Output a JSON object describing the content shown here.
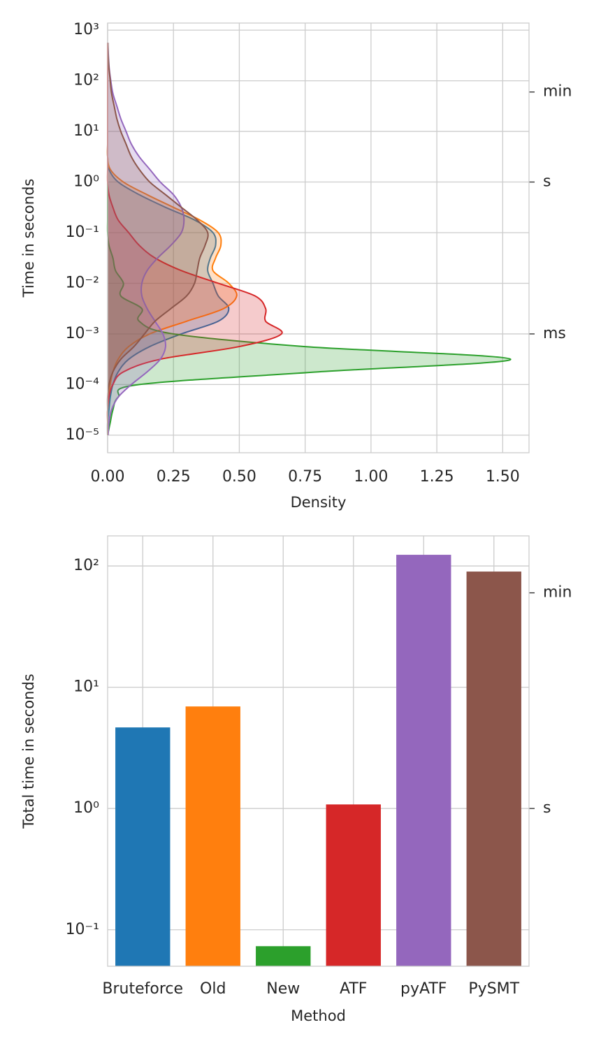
{
  "chart_data": [
    {
      "type": "kde",
      "xlabel": "Density",
      "ylabel": "Time in seconds",
      "yscale": "log",
      "grid": true,
      "xlim": [
        0,
        1.6
      ],
      "xticks": [
        {
          "value": 0,
          "label": "0.00"
        },
        {
          "value": 0.25,
          "label": "0.25"
        },
        {
          "value": 0.5,
          "label": "0.50"
        },
        {
          "value": 0.75,
          "label": "0.75"
        },
        {
          "value": 1,
          "label": "1.00"
        },
        {
          "value": 1.25,
          "label": "1.25"
        },
        {
          "value": 1.5,
          "label": "1.50"
        }
      ],
      "ylim": [
        4.5e-06,
        1380
      ],
      "yticks": [
        {
          "value": 1e-05,
          "label": "10⁻⁵"
        },
        {
          "value": 0.0001,
          "label": "10⁻⁴"
        },
        {
          "value": 0.001,
          "label": "10⁻³"
        },
        {
          "value": 0.01,
          "label": "10⁻²"
        },
        {
          "value": 0.1,
          "label": "10⁻¹"
        },
        {
          "value": 1,
          "label": "10⁰"
        },
        {
          "value": 10,
          "label": "10¹"
        },
        {
          "value": 100,
          "label": "10²"
        },
        {
          "value": 1000,
          "label": "10³"
        }
      ],
      "y2lim": [
        4.5e-06,
        1380
      ],
      "y2ticks": [
        {
          "value": 60,
          "label": "min"
        },
        {
          "value": 1,
          "label": "s"
        },
        {
          "value": 0.001,
          "label": "ms"
        }
      ],
      "y": [
        1e-05,
        1.78e-05,
        3.16e-05,
        5.62e-05,
        0.0001,
        0.000178,
        0.000316,
        0.000562,
        0.001,
        0.00178,
        0.00316,
        0.00562,
        0.01,
        0.0178,
        0.0316,
        0.0562,
        0.1,
        0.178,
        0.316,
        0.562,
        1,
        1.78,
        3.16,
        5.62,
        10,
        17.8,
        31.6,
        56.2,
        100,
        178,
        316,
        562
      ],
      "series": [
        {
          "color": "#1f77b4",
          "values": [
            0,
            0,
            0.005,
            0.01,
            0.02,
            0.04,
            0.08,
            0.16,
            0.28,
            0.42,
            0.46,
            0.42,
            0.4,
            0.38,
            0.39,
            0.41,
            0.4,
            0.33,
            0.22,
            0.12,
            0.04,
            0.005,
            0,
            0,
            0,
            0,
            0,
            0,
            0,
            0,
            0,
            0
          ]
        },
        {
          "color": "#ff7f0e",
          "values": [
            0,
            0,
            0,
            0.005,
            0.01,
            0.02,
            0.04,
            0.08,
            0.16,
            0.3,
            0.44,
            0.49,
            0.46,
            0.4,
            0.41,
            0.43,
            0.42,
            0.35,
            0.25,
            0.15,
            0.06,
            0.01,
            0,
            0,
            0,
            0,
            0,
            0,
            0,
            0,
            0,
            0
          ]
        },
        {
          "color": "#2ca02c",
          "values": [
            0,
            0.01,
            0.02,
            0.04,
            0.12,
            0.8,
            1.53,
            0.75,
            0.25,
            0.12,
            0.13,
            0.05,
            0.06,
            0.03,
            0.02,
            0.005,
            0,
            0,
            0,
            0,
            0,
            0,
            0,
            0,
            0,
            0,
            0,
            0,
            0,
            0,
            0,
            0
          ]
        },
        {
          "color": "#d62728",
          "values": [
            0,
            0,
            0,
            0.005,
            0.02,
            0.06,
            0.2,
            0.5,
            0.66,
            0.6,
            0.6,
            0.56,
            0.42,
            0.28,
            0.18,
            0.12,
            0.08,
            0.04,
            0.02,
            0.005,
            0,
            0,
            0,
            0,
            0,
            0,
            0,
            0,
            0,
            0,
            0,
            0
          ]
        },
        {
          "color": "#9467bd",
          "values": [
            0.002,
            0.005,
            0.015,
            0.04,
            0.09,
            0.15,
            0.2,
            0.22,
            0.21,
            0.18,
            0.15,
            0.13,
            0.13,
            0.15,
            0.19,
            0.24,
            0.28,
            0.29,
            0.28,
            0.25,
            0.2,
            0.16,
            0.12,
            0.09,
            0.07,
            0.05,
            0.035,
            0.02,
            0.012,
            0.006,
            0.003,
            0.001
          ]
        },
        {
          "color": "#8c564b",
          "values": [
            0,
            0,
            0,
            0,
            0.005,
            0.02,
            0.05,
            0.1,
            0.14,
            0.18,
            0.24,
            0.3,
            0.33,
            0.34,
            0.35,
            0.37,
            0.38,
            0.34,
            0.28,
            0.22,
            0.16,
            0.12,
            0.09,
            0.07,
            0.05,
            0.035,
            0.025,
            0.015,
            0.01,
            0.005,
            0.002,
            0.001
          ]
        }
      ]
    },
    {
      "type": "bar",
      "xlabel": "Method",
      "ylabel": "Total time in seconds",
      "yscale": "log",
      "grid": true,
      "ylim": [
        0.05,
        177
      ],
      "yticks": [
        {
          "value": 0.1,
          "label": "10⁻¹"
        },
        {
          "value": 1,
          "label": "10⁰"
        },
        {
          "value": 10,
          "label": "10¹"
        },
        {
          "value": 100,
          "label": "10²"
        }
      ],
      "y2lim": [
        0.05,
        177
      ],
      "y2ticks": [
        {
          "value": 60,
          "label": "min"
        },
        {
          "value": 1,
          "label": "s"
        }
      ],
      "categories": [
        "Bruteforce",
        "Old",
        "New",
        "ATF",
        "pyATF",
        "PySMT"
      ],
      "values": [
        4.66,
        6.94,
        0.0732,
        1.08,
        123.6,
        89.9
      ],
      "colors": [
        "#1f77b4",
        "#ff7f0e",
        "#2ca02c",
        "#d62728",
        "#9467bd",
        "#8c564b"
      ]
    }
  ]
}
